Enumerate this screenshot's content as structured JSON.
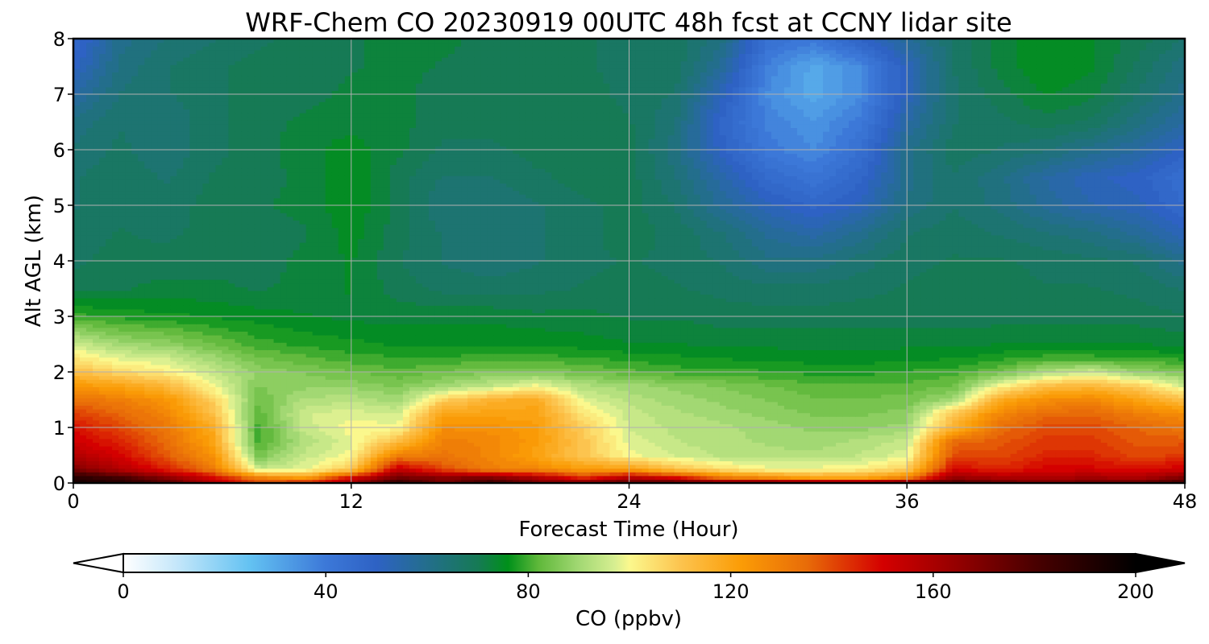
{
  "chart_data": {
    "type": "heatmap",
    "subtype": "filled-contour time-height cross-section",
    "title": "WRF-Chem CO  20230919 00UTC 48h fcst at CCNY lidar site",
    "xlabel": "Forecast Time (Hour)",
    "ylabel": "Alt AGL (km)",
    "xlim": [
      0,
      48
    ],
    "ylim": [
      0,
      8
    ],
    "xticks": [
      0,
      12,
      24,
      36,
      48
    ],
    "yticks": [
      0,
      1,
      2,
      3,
      4,
      5,
      6,
      7,
      8
    ],
    "grid": true,
    "colorbar": {
      "label": "CO  (ppbv)",
      "orientation": "horizontal",
      "placement": "bottom",
      "range": [
        0,
        200
      ],
      "ticks": [
        0,
        40,
        80,
        120,
        160,
        200
      ],
      "extend": "both",
      "colormap": [
        {
          "v": 0,
          "color": "#ffffff"
        },
        {
          "v": 10,
          "color": "#c8e8fa"
        },
        {
          "v": 25,
          "color": "#63c2f2"
        },
        {
          "v": 40,
          "color": "#3c78d8"
        },
        {
          "v": 50,
          "color": "#2e62c4"
        },
        {
          "v": 60,
          "color": "#236e8c"
        },
        {
          "v": 70,
          "color": "#167a55"
        },
        {
          "v": 76,
          "color": "#00901a"
        },
        {
          "v": 82,
          "color": "#5fb83a"
        },
        {
          "v": 90,
          "color": "#a2d873"
        },
        {
          "v": 97,
          "color": "#d6ee91"
        },
        {
          "v": 100,
          "color": "#fbf88d"
        },
        {
          "v": 110,
          "color": "#fcc44f"
        },
        {
          "v": 122,
          "color": "#fb9c06"
        },
        {
          "v": 135,
          "color": "#e86c08"
        },
        {
          "v": 150,
          "color": "#d40000"
        },
        {
          "v": 165,
          "color": "#930000"
        },
        {
          "v": 180,
          "color": "#4a0000"
        },
        {
          "v": 200,
          "color": "#000000"
        }
      ]
    },
    "time_hours": [
      0,
      2,
      4,
      6,
      8,
      10,
      12,
      14,
      16,
      18,
      20,
      22,
      24,
      26,
      28,
      30,
      32,
      34,
      36,
      38,
      40,
      42,
      44,
      46,
      48
    ],
    "altitude_km": [
      0,
      0.1,
      0.25,
      0.5,
      0.75,
      1.0,
      1.25,
      1.5,
      1.75,
      2.0,
      2.25,
      2.5,
      3.0,
      3.5,
      4.0,
      4.5,
      5.0,
      5.5,
      6.0,
      6.5,
      7.0,
      7.5,
      8.0
    ],
    "values_ppbv": [
      [
        195,
        190,
        178,
        158,
        142,
        148,
        160,
        188,
        170,
        185,
        170,
        170,
        178,
        178,
        174,
        175,
        174,
        172,
        176,
        180,
        175,
        170,
        174,
        175,
        182
      ],
      [
        190,
        182,
        168,
        150,
        130,
        122,
        150,
        172,
        168,
        170,
        160,
        145,
        158,
        150,
        132,
        128,
        120,
        120,
        130,
        165,
        160,
        160,
        162,
        160,
        170
      ],
      [
        170,
        158,
        146,
        132,
        95,
        98,
        110,
        155,
        140,
        130,
        128,
        122,
        122,
        112,
        105,
        100,
        100,
        102,
        108,
        150,
        145,
        150,
        150,
        148,
        152
      ],
      [
        158,
        150,
        138,
        125,
        85,
        95,
        100,
        130,
        132,
        128,
        120,
        110,
        100,
        96,
        93,
        92,
        92,
        94,
        98,
        140,
        140,
        145,
        145,
        140,
        142
      ],
      [
        152,
        145,
        135,
        120,
        80,
        92,
        98,
        112,
        130,
        128,
        122,
        110,
        98,
        94,
        92,
        91,
        90,
        92,
        95,
        135,
        138,
        142,
        142,
        138,
        138
      ],
      [
        148,
        140,
        132,
        118,
        80,
        95,
        100,
        100,
        126,
        125,
        122,
        108,
        96,
        93,
        92,
        90,
        88,
        88,
        90,
        115,
        134,
        140,
        140,
        136,
        132
      ],
      [
        142,
        136,
        128,
        112,
        82,
        96,
        98,
        96,
        120,
        120,
        120,
        104,
        95,
        92,
        90,
        88,
        86,
        86,
        87,
        110,
        128,
        135,
        136,
        130,
        126
      ],
      [
        134,
        130,
        124,
        108,
        84,
        92,
        93,
        90,
        108,
        115,
        118,
        98,
        93,
        90,
        88,
        86,
        84,
        84,
        85,
        90,
        118,
        126,
        128,
        120,
        112
      ],
      [
        124,
        120,
        114,
        100,
        86,
        88,
        88,
        86,
        90,
        94,
        100,
        92,
        90,
        88,
        86,
        84,
        82,
        82,
        82,
        84,
        100,
        112,
        114,
        108,
        96
      ],
      [
        112,
        106,
        102,
        95,
        88,
        86,
        84,
        82,
        84,
        86,
        86,
        84,
        82,
        80,
        80,
        79,
        78,
        78,
        79,
        80,
        84,
        92,
        96,
        88,
        86
      ],
      [
        104,
        98,
        96,
        90,
        84,
        82,
        80,
        79,
        79,
        80,
        80,
        79,
        78,
        77,
        76,
        76,
        75,
        75,
        76,
        76,
        78,
        80,
        80,
        79,
        78
      ],
      [
        96,
        90,
        88,
        84,
        80,
        78,
        77,
        76,
        76,
        76,
        76,
        75,
        74,
        74,
        73,
        73,
        73,
        73,
        73,
        73,
        74,
        74,
        74,
        74,
        73
      ],
      [
        80,
        78,
        77,
        76,
        75,
        74,
        73,
        73,
        73,
        73,
        72,
        72,
        71,
        71,
        70,
        70,
        70,
        70,
        70,
        70,
        70,
        70,
        70,
        70,
        69
      ],
      [
        70,
        71,
        72,
        72,
        71,
        72,
        74,
        70,
        68,
        68,
        68,
        69,
        70,
        69,
        68,
        67,
        67,
        68,
        69,
        70,
        70,
        69,
        69,
        68,
        66
      ],
      [
        68,
        70,
        70,
        70,
        70,
        72,
        74,
        69,
        66,
        64,
        66,
        68,
        69,
        68,
        66,
        62,
        62,
        65,
        68,
        69,
        69,
        68,
        67,
        66,
        60
      ],
      [
        67,
        69,
        68,
        70,
        70,
        71,
        75,
        70,
        66,
        64,
        66,
        68,
        70,
        68,
        64,
        58,
        55,
        60,
        66,
        68,
        66,
        64,
        62,
        58,
        52
      ],
      [
        66,
        68,
        67,
        70,
        71,
        72,
        76,
        70,
        64,
        64,
        66,
        68,
        70,
        66,
        58,
        52,
        48,
        52,
        62,
        66,
        63,
        58,
        54,
        52,
        46
      ],
      [
        66,
        68,
        66,
        69,
        70,
        72,
        76,
        70,
        66,
        66,
        68,
        70,
        70,
        64,
        55,
        46,
        42,
        48,
        60,
        66,
        62,
        56,
        52,
        50,
        44
      ],
      [
        64,
        67,
        64,
        68,
        70,
        73,
        75,
        72,
        68,
        68,
        70,
        70,
        70,
        62,
        50,
        40,
        36,
        44,
        60,
        68,
        66,
        64,
        60,
        56,
        50
      ],
      [
        62,
        66,
        64,
        68,
        70,
        72,
        73,
        72,
        70,
        70,
        70,
        70,
        69,
        64,
        48,
        38,
        34,
        40,
        56,
        66,
        68,
        70,
        68,
        62,
        56
      ],
      [
        56,
        64,
        66,
        68,
        70,
        70,
        72,
        72,
        70,
        70,
        70,
        70,
        68,
        66,
        52,
        36,
        30,
        36,
        52,
        66,
        70,
        74,
        72,
        66,
        60
      ],
      [
        50,
        62,
        66,
        68,
        70,
        70,
        71,
        72,
        71,
        70,
        70,
        69,
        68,
        68,
        58,
        38,
        30,
        36,
        52,
        66,
        72,
        76,
        74,
        68,
        62
      ],
      [
        46,
        60,
        64,
        66,
        68,
        70,
        71,
        72,
        72,
        70,
        70,
        69,
        68,
        68,
        62,
        44,
        40,
        50,
        58,
        66,
        72,
        76,
        74,
        70,
        66
      ]
    ]
  }
}
